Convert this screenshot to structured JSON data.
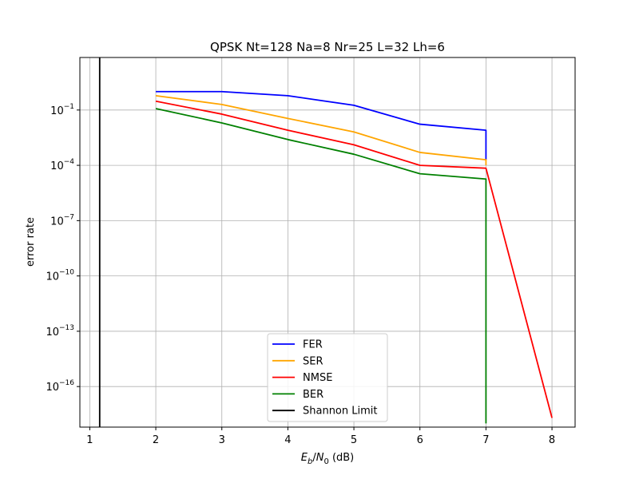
{
  "chart_data": {
    "type": "line",
    "title": "QPSK Nt=128 Na=8 Nr=25 L=32 Lh=6",
    "xlabel": "E_b/N_0 (dB)",
    "ylabel": "error rate",
    "xlim": [
      0.85,
      8.35
    ],
    "ylim_log10": [
      -18.2,
      1.85
    ],
    "y_scale": "log",
    "grid": true,
    "legend_position": "lower-center",
    "x_ticks": [
      1,
      2,
      3,
      4,
      5,
      6,
      7,
      8
    ],
    "y_ticks": [
      {
        "exp": -1,
        "label": "10^-1"
      },
      {
        "exp": -4,
        "label": "10^-4"
      },
      {
        "exp": -7,
        "label": "10^-7"
      },
      {
        "exp": -10,
        "label": "10^-10"
      },
      {
        "exp": -13,
        "label": "10^-13"
      },
      {
        "exp": -16,
        "label": "10^-16"
      }
    ],
    "series": [
      {
        "name": "FER",
        "color": "#0000ff",
        "points": [
          [
            2,
            1.0
          ],
          [
            3,
            1.0
          ],
          [
            4,
            0.6
          ],
          [
            5,
            0.18
          ],
          [
            6,
            0.017
          ],
          [
            7,
            0.008
          ],
          [
            7,
            0.0002
          ]
        ]
      },
      {
        "name": "SER",
        "color": "#ffa500",
        "points": [
          [
            2,
            0.6
          ],
          [
            3,
            0.2
          ],
          [
            4,
            0.035
          ],
          [
            5,
            0.0065
          ],
          [
            6,
            0.0005
          ],
          [
            7,
            0.0002
          ],
          [
            7,
            0.0001
          ]
        ]
      },
      {
        "name": "NMSE",
        "color": "#ff0000",
        "points": [
          [
            2,
            0.3
          ],
          [
            3,
            0.06
          ],
          [
            4,
            0.008
          ],
          [
            5,
            0.0013
          ],
          [
            6,
            0.0001
          ],
          [
            7,
            7e-05
          ],
          [
            8,
            2e-18
          ]
        ]
      },
      {
        "name": "BER",
        "color": "#008000",
        "points": [
          [
            2,
            0.12
          ],
          [
            3,
            0.02
          ],
          [
            4,
            0.0025
          ],
          [
            5,
            0.0004
          ],
          [
            6,
            3.5e-05
          ],
          [
            7,
            1.8e-05
          ],
          [
            7,
            1e-18
          ]
        ]
      },
      {
        "name": "Shannon Limit",
        "color": "#000000",
        "type": "vline",
        "x": 1.15
      }
    ]
  }
}
